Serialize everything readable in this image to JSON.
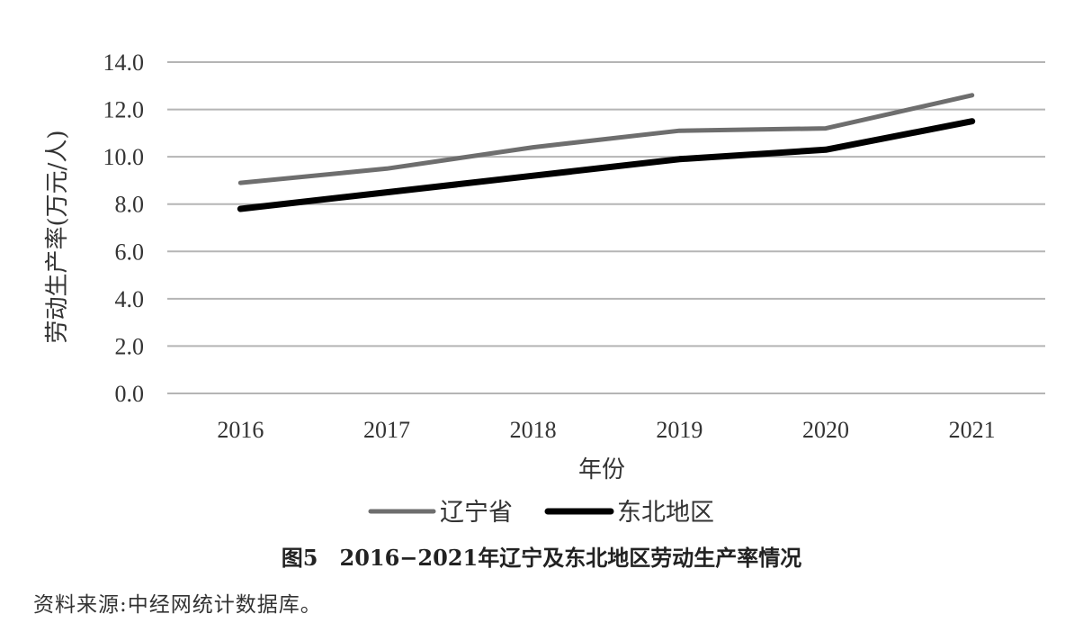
{
  "chart_data": {
    "type": "line",
    "categories": [
      "2016",
      "2017",
      "2018",
      "2019",
      "2020",
      "2021"
    ],
    "series": [
      {
        "name": "辽宁省",
        "values": [
          8.9,
          9.5,
          10.4,
          11.1,
          11.2,
          12.6
        ],
        "color": "#6e6e6e"
      },
      {
        "name": "东北地区",
        "values": [
          7.8,
          8.5,
          9.2,
          9.9,
          10.3,
          11.5
        ],
        "color": "#000000"
      }
    ],
    "ylim": [
      0,
      14
    ],
    "yticks": [
      "0.0",
      "2.0",
      "4.0",
      "6.0",
      "8.0",
      "10.0",
      "12.0",
      "14.0"
    ],
    "ylabel": "劳动生产率(万元/人)",
    "xlabel": "年份",
    "grid": true,
    "legend_position": "bottom",
    "gridline_color": "#b5b5b5"
  },
  "figure": {
    "caption": "图5　2016−2021年辽宁及东北地区劳动生产率情况",
    "source": "资料来源:中经网统计数据库。"
  }
}
